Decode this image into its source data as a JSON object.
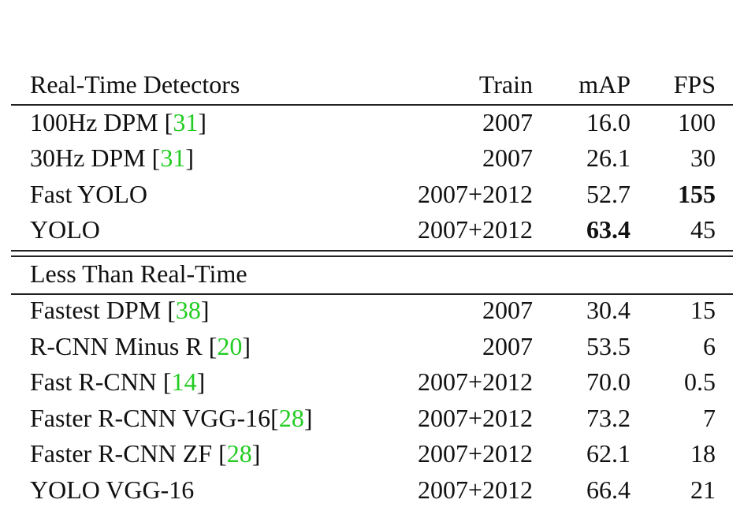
{
  "table": {
    "header": [
      "Real-Time Detectors",
      "Train",
      "mAP",
      "FPS"
    ],
    "sections": [
      {
        "rows": [
          {
            "method": "100Hz DPM ",
            "cite": [
              "[",
              "31",
              "]"
            ],
            "train": "2007",
            "map": "16.0",
            "fps": "100"
          },
          {
            "method": "30Hz DPM ",
            "cite": [
              "[",
              "31",
              "]"
            ],
            "train": "2007",
            "map": "26.1",
            "fps": "30"
          },
          {
            "method": "Fast YOLO",
            "train": "2007+2012",
            "map": "52.7",
            "fps": "155",
            "bold": "fps"
          },
          {
            "method": "YOLO",
            "train": "2007+2012",
            "map": "63.4",
            "fps": "45",
            "bold": "map"
          }
        ]
      },
      {
        "title": "Less Than Real-Time",
        "rows": [
          {
            "method": "Fastest DPM ",
            "cite": [
              "[",
              "38",
              "]"
            ],
            "train": "2007",
            "map": "30.4",
            "fps": "15"
          },
          {
            "method": "R-CNN Minus R ",
            "cite": [
              "[",
              "20",
              "]"
            ],
            "train": "2007",
            "map": "53.5",
            "fps": "6"
          },
          {
            "method": "Fast R-CNN ",
            "cite": [
              "[",
              "14",
              "]"
            ],
            "train": "2007+2012",
            "map": "70.0",
            "fps": "0.5"
          },
          {
            "method": "Faster R-CNN VGG-16",
            "cite": [
              "[",
              "28",
              "]"
            ],
            "train": "2007+2012",
            "map": "73.2",
            "fps": "7"
          },
          {
            "method": "Faster R-CNN ZF ",
            "cite": [
              "[",
              "28",
              "]"
            ],
            "train": "2007+2012",
            "map": "62.1",
            "fps": "18"
          },
          {
            "method": "YOLO VGG-16",
            "train": "2007+2012",
            "map": "66.4",
            "fps": "21"
          }
        ]
      }
    ]
  }
}
